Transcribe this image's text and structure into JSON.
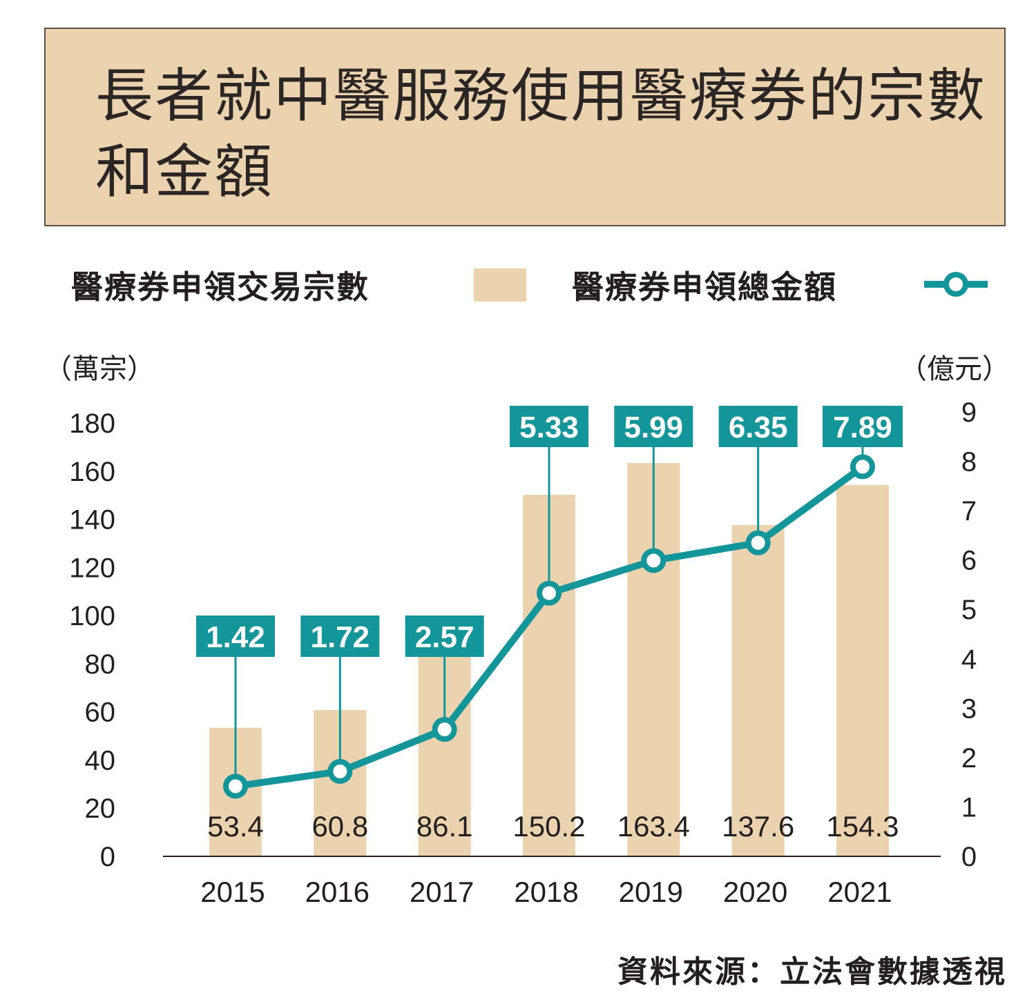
{
  "title": "長者就中醫服務使用醫療券的宗數和金額",
  "source": "資料來源：立法會數據透視",
  "colors": {
    "bar": "#ecd3af",
    "line": "#13959a",
    "title_bg": "#ecd3af",
    "text": "#231f20"
  },
  "chart_data": {
    "type": "bar+line",
    "title": "長者就中醫服務使用醫療券的宗數和金額",
    "categories": [
      "2015",
      "2016",
      "2017",
      "2018",
      "2019",
      "2020",
      "2021"
    ],
    "series": [
      {
        "name": "醫療券申領交易宗數",
        "type": "bar",
        "axis": "left",
        "values": [
          53.4,
          60.8,
          86.1,
          150.2,
          163.4,
          137.6,
          154.3
        ]
      },
      {
        "name": "醫療券申領總金額",
        "type": "line",
        "axis": "right",
        "values": [
          1.42,
          1.72,
          2.57,
          5.33,
          5.99,
          6.35,
          7.89
        ]
      }
    ],
    "y_left": {
      "label": "（萬宗）",
      "range": [
        0,
        180
      ],
      "ticks": [
        "0",
        "20",
        "40",
        "60",
        "80",
        "100",
        "120",
        "140",
        "160",
        "180"
      ]
    },
    "y_right": {
      "label": "（億元）",
      "range": [
        0,
        9
      ],
      "ticks": [
        "0",
        "1",
        "2",
        "3",
        "4",
        "5",
        "6",
        "7",
        "8",
        "9"
      ]
    },
    "legend_position": "top"
  }
}
